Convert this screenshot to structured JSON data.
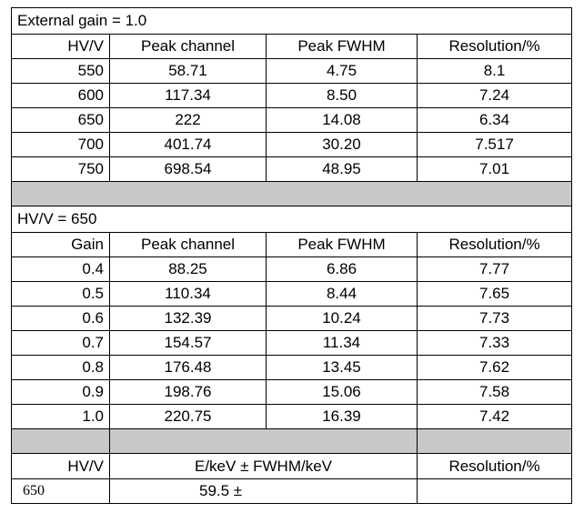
{
  "section1": {
    "title": "External gain = 1.0",
    "header": [
      "HV/V",
      "Peak channel",
      "Peak FWHM",
      "Resolution/%"
    ],
    "rows": [
      [
        "550",
        "58.71",
        "4.75",
        "8.1"
      ],
      [
        "600",
        "117.34",
        "8.50",
        "7.24"
      ],
      [
        "650",
        "222",
        "14.08",
        "6.34"
      ],
      [
        "700",
        "401.74",
        "30.20",
        "7.517"
      ],
      [
        "750",
        "698.54",
        "48.95",
        "7.01"
      ]
    ]
  },
  "section2": {
    "title": "HV/V = 650",
    "header": [
      "Gain",
      "Peak channel",
      "Peak FWHM",
      "Resolution/%"
    ],
    "rows": [
      [
        "0.4",
        "88.25",
        "6.86",
        "7.77"
      ],
      [
        "0.5",
        "110.34",
        "8.44",
        "7.65"
      ],
      [
        "0.6",
        "132.39",
        "10.24",
        "7.73"
      ],
      [
        "0.7",
        "154.57",
        "11.34",
        "7.33"
      ],
      [
        "0.8",
        "176.48",
        "13.45",
        "7.62"
      ],
      [
        "0.9",
        "198.76",
        "15.06",
        "7.58"
      ],
      [
        "1.0",
        "220.75",
        "16.39",
        "7.42"
      ]
    ]
  },
  "section3": {
    "header": [
      "HV/V",
      "E/keV ± FWHM/keV",
      "Resolution/%"
    ],
    "rows": [
      [
        "650",
        "59.5 ±"
      ]
    ]
  }
}
